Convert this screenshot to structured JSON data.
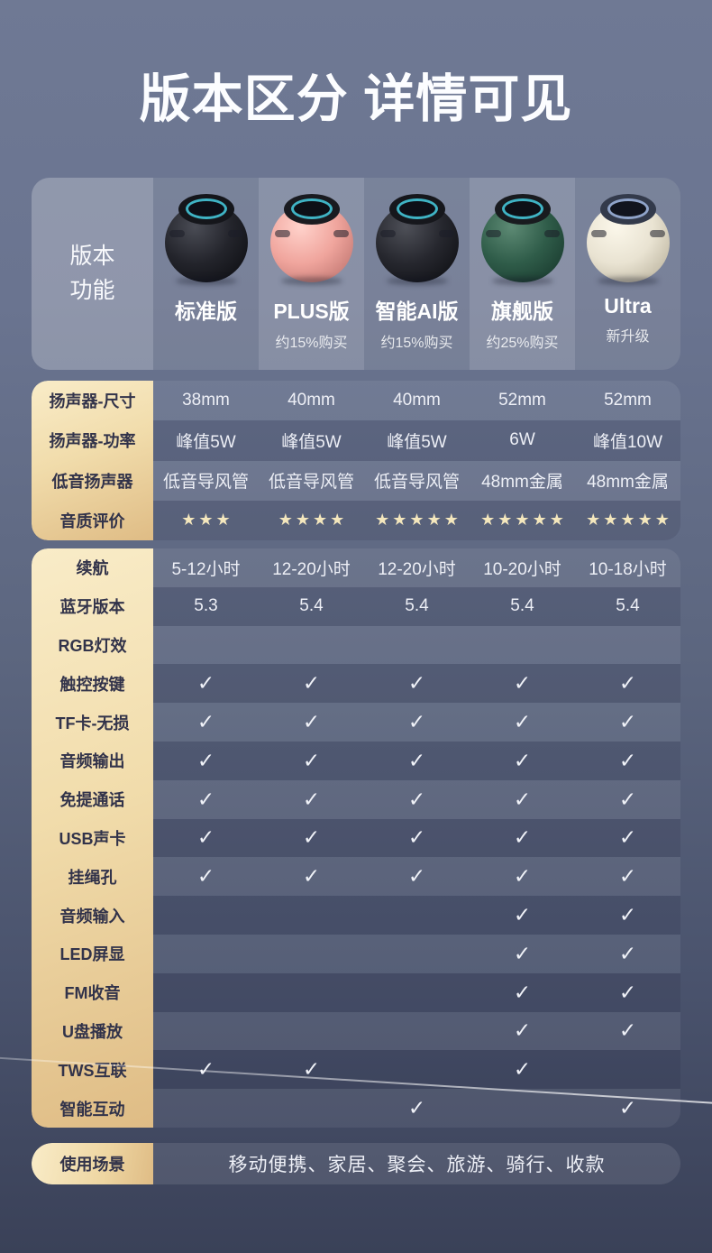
{
  "title": "版本区分 详情可见",
  "icons": {
    "check": "✓",
    "star": "★"
  },
  "colors": {
    "page_top": "#6f7994",
    "page_bottom": "#3a4158",
    "gold_light": "#f9ecc8",
    "gold_dark": "#dfbc85",
    "label_text": "#32334a",
    "value_text": "#edeff6",
    "star": "#f4e7bd",
    "ring_teal": "#3fb3c4"
  },
  "header": {
    "corner_label_lines": [
      "版本",
      "功能"
    ],
    "products": [
      {
        "name": "标准版",
        "subtitle": "",
        "colors": {
          "highlight": "#4a4c55",
          "body": "#23242b",
          "shadow": "#0b0c10",
          "cap": "#15161b",
          "ring": "#3fb3c4"
        }
      },
      {
        "name": "PLUS版",
        "subtitle": "约15%购买",
        "colors": {
          "highlight": "#ffd2cb",
          "body": "#f0a59d",
          "shadow": "#b96f6a",
          "cap": "#1a1b20",
          "ring": "#3fb3c4"
        }
      },
      {
        "name": "智能AI版",
        "subtitle": "约15%购买",
        "colors": {
          "highlight": "#4e5058",
          "body": "#26272e",
          "shadow": "#0c0d11",
          "cap": "#16171c",
          "ring": "#3fb3c4"
        }
      },
      {
        "name": "旗舰版",
        "subtitle": "约25%购买",
        "colors": {
          "highlight": "#5d8a74",
          "body": "#2f5c49",
          "shadow": "#16352a",
          "cap": "#191b1f",
          "ring": "#3fb3c4"
        }
      },
      {
        "name": "Ultra",
        "subtitle": "新升级",
        "colors": {
          "highlight": "#fbf7ea",
          "body": "#e9e3d2",
          "shadow": "#b5ad97",
          "cap": "#333a4b",
          "ring": "#8fa3c9"
        }
      }
    ]
  },
  "sections": [
    {
      "rows": [
        {
          "label": "扬声器-尺寸",
          "type": "text",
          "values": [
            "38mm",
            "40mm",
            "40mm",
            "52mm",
            "52mm"
          ]
        },
        {
          "label": "扬声器-功率",
          "type": "text",
          "values": [
            "峰值5W",
            "峰值5W",
            "峰值5W",
            "6W",
            "峰值10W"
          ]
        },
        {
          "label": "低音扬声器",
          "type": "text",
          "values": [
            "低音导风管",
            "低音导风管",
            "低音导风管",
            "48mm金属",
            "48mm金属"
          ]
        },
        {
          "label": "音质评价",
          "type": "stars",
          "values": [
            3,
            4,
            5,
            5,
            5
          ]
        }
      ]
    },
    {
      "rows": [
        {
          "label": "续航",
          "type": "text",
          "values": [
            "5-12小时",
            "12-20小时",
            "12-20小时",
            "10-20小时",
            "10-18小时"
          ]
        },
        {
          "label": "蓝牙版本",
          "type": "text",
          "values": [
            "5.3",
            "5.4",
            "5.4",
            "5.4",
            "5.4"
          ]
        },
        {
          "label": "RGB灯效",
          "type": "check",
          "values": [
            false,
            false,
            false,
            false,
            false
          ]
        },
        {
          "label": "触控按键",
          "type": "check",
          "values": [
            true,
            true,
            true,
            true,
            true
          ]
        },
        {
          "label": "TF卡-无损",
          "type": "check",
          "values": [
            true,
            true,
            true,
            true,
            true
          ]
        },
        {
          "label": "音频输出",
          "type": "check",
          "values": [
            true,
            true,
            true,
            true,
            true
          ]
        },
        {
          "label": "免提通话",
          "type": "check",
          "values": [
            true,
            true,
            true,
            true,
            true
          ]
        },
        {
          "label": "USB声卡",
          "type": "check",
          "values": [
            true,
            true,
            true,
            true,
            true
          ]
        },
        {
          "label": "挂绳孔",
          "type": "check",
          "values": [
            true,
            true,
            true,
            true,
            true
          ]
        },
        {
          "label": "音频输入",
          "type": "check",
          "values": [
            false,
            false,
            false,
            true,
            true
          ]
        },
        {
          "label": "LED屏显",
          "type": "check",
          "values": [
            false,
            false,
            false,
            true,
            true
          ]
        },
        {
          "label": "FM收音",
          "type": "check",
          "values": [
            false,
            false,
            false,
            true,
            true
          ]
        },
        {
          "label": "U盘播放",
          "type": "check",
          "values": [
            false,
            false,
            false,
            true,
            true
          ]
        },
        {
          "label": "TWS互联",
          "type": "check",
          "values": [
            true,
            true,
            false,
            true,
            false
          ]
        },
        {
          "label": "智能互动",
          "type": "check",
          "values": [
            false,
            false,
            true,
            false,
            true
          ]
        }
      ]
    }
  ],
  "scenario": {
    "label": "使用场景",
    "value": "移动便携、家居、聚会、旅游、骑行、收款"
  }
}
